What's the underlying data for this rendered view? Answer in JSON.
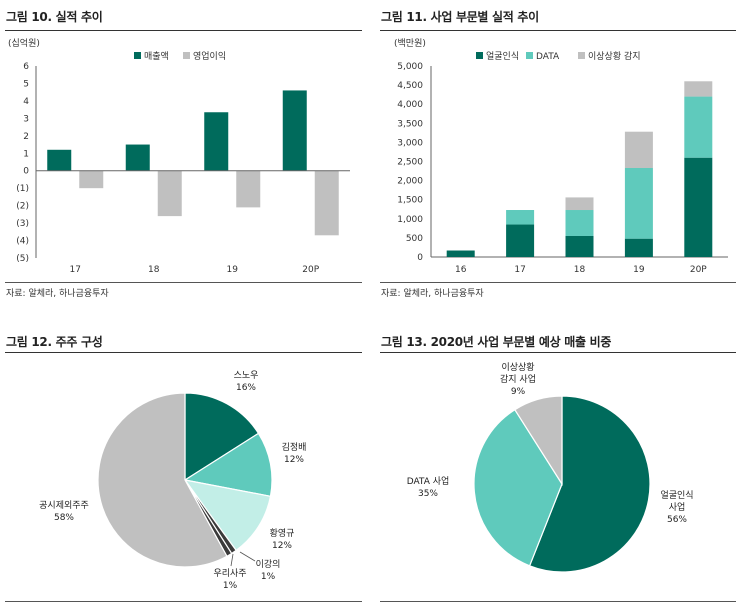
{
  "colors": {
    "dark": "#006B5C",
    "teal": "#5FCABC",
    "light": "#C2EEE7",
    "gray": "#C0C0C0",
    "darkgray": "#3A3A3A"
  },
  "fig10": {
    "title": "그림 10. 실적 추이",
    "source": "자료: 알체라, 하나금융투자"
  },
  "fig11": {
    "title": "그림 11. 사업 부문별 실적 추이",
    "source": "자료: 알체라, 하나금융투자"
  },
  "fig12": {
    "title": "그림 12. 주주 구성"
  },
  "fig13": {
    "title": "그림 13. 2020년 사업 부문별 예상 매출 비중"
  },
  "chart_data": [
    {
      "id": "fig10",
      "type": "bar",
      "unit": "(십억원)",
      "categories": [
        "17",
        "18",
        "19",
        "20P"
      ],
      "series": [
        {
          "name": "매출액",
          "values": [
            1.2,
            1.5,
            3.35,
            4.6
          ]
        },
        {
          "name": "영업이익",
          "values": [
            -1.0,
            -2.6,
            -2.1,
            -3.7
          ]
        }
      ],
      "ylim": [
        -5,
        6
      ],
      "yticks": [
        "6",
        "5",
        "4",
        "3",
        "2",
        "1",
        "0",
        "(1)",
        "(2)",
        "(3)",
        "(4)",
        "(5)"
      ],
      "legend": "top"
    },
    {
      "id": "fig11",
      "type": "bar",
      "stacked": true,
      "unit": "(백만원)",
      "categories": [
        "16",
        "17",
        "18",
        "19",
        "20P"
      ],
      "series": [
        {
          "name": "얼굴인식",
          "values": [
            170,
            850,
            550,
            480,
            2600
          ]
        },
        {
          "name": "DATA",
          "values": [
            0,
            380,
            680,
            1850,
            1600
          ]
        },
        {
          "name": "이상상황 감지",
          "values": [
            0,
            0,
            330,
            950,
            400
          ]
        }
      ],
      "ylim": [
        0,
        5000
      ],
      "yticks": [
        "5,000",
        "4,500",
        "4,000",
        "3,500",
        "3,000",
        "2,500",
        "2,000",
        "1,500",
        "1,000",
        "500",
        "0"
      ],
      "legend": "top"
    },
    {
      "id": "fig12",
      "type": "pie",
      "slices": [
        {
          "label": "스노우",
          "pct": "16%",
          "value": 16
        },
        {
          "label": "김정배",
          "pct": "12%",
          "value": 12
        },
        {
          "label": "황영규",
          "pct": "12%",
          "value": 12
        },
        {
          "label": "이강의",
          "pct": "1%",
          "value": 1
        },
        {
          "label": "우리사주",
          "pct": "1%",
          "value": 1
        },
        {
          "label": "공시제외주주",
          "pct": "58%",
          "value": 58
        }
      ]
    },
    {
      "id": "fig13",
      "type": "pie",
      "slices": [
        {
          "label": "얼굴인식 사업",
          "lines": [
            "얼굴인식",
            "사업"
          ],
          "pct": "56%",
          "value": 56
        },
        {
          "label": "DATA 사업",
          "lines": [
            "DATA 사업"
          ],
          "pct": "35%",
          "value": 35
        },
        {
          "label": "이상상황 감지 사업",
          "lines": [
            "이상상황",
            "감지 사업"
          ],
          "pct": "9%",
          "value": 9
        }
      ]
    }
  ]
}
